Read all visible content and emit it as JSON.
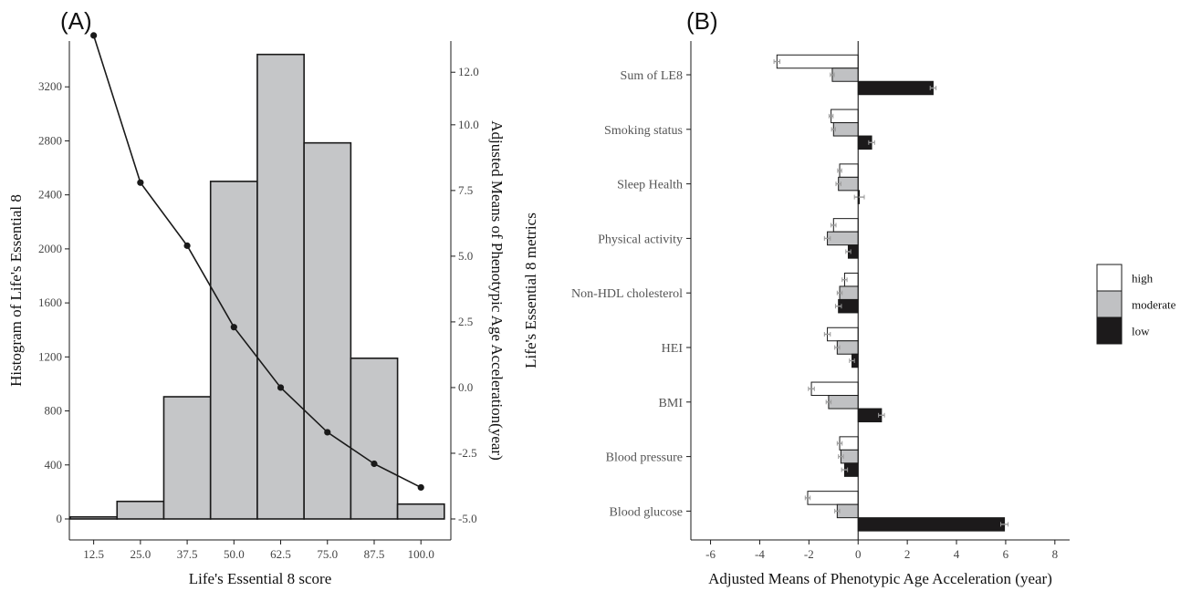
{
  "chart_data": [
    {
      "id": "A",
      "type": "bar",
      "panel_label": "(A)",
      "title": "",
      "xlabel": "Life's Essential 8 score",
      "ylabel": "Histogram of Life's Essential 8",
      "y2label": "Adjusted Means of Phenotypic Age Acceleration(year)",
      "xticks": [
        "12.5",
        "25.0",
        "37.5",
        "50.0",
        "62.5",
        "75.0",
        "87.5",
        "100.0"
      ],
      "xtick_values": [
        12.5,
        25,
        37.5,
        50,
        62.5,
        75,
        87.5,
        100
      ],
      "xlim": [
        6,
        108
      ],
      "ylim": [
        0,
        3600
      ],
      "yticks": [
        "0",
        "400",
        "800",
        "1200",
        "1600",
        "2000",
        "2400",
        "2800",
        "3200"
      ],
      "ytick_values": [
        0,
        400,
        800,
        1200,
        1600,
        2000,
        2400,
        2800,
        3200
      ],
      "y2lim": [
        -5,
        13.5
      ],
      "y2ticks": [
        "-5.0",
        "-2.5",
        "0.0",
        "2.5",
        "5.0",
        "7.5",
        "10.0",
        "12.0"
      ],
      "y2tick_values": [
        -5,
        -2.5,
        0,
        2.5,
        5,
        7.5,
        10,
        12
      ],
      "bars": [
        {
          "x0": 6.25,
          "x1": 18.75,
          "value": 15
        },
        {
          "x0": 18.75,
          "x1": 31.25,
          "value": 130
        },
        {
          "x0": 31.25,
          "x1": 43.75,
          "value": 905
        },
        {
          "x0": 43.75,
          "x1": 56.25,
          "value": 2500
        },
        {
          "x0": 56.25,
          "x1": 68.75,
          "value": 3440
        },
        {
          "x0": 68.75,
          "x1": 81.25,
          "value": 2785
        },
        {
          "x0": 81.25,
          "x1": 93.75,
          "value": 1190
        },
        {
          "x0": 93.75,
          "x1": 106.25,
          "value": 110
        }
      ],
      "line": {
        "x": [
          12.5,
          25,
          37.5,
          50,
          62.5,
          75,
          87.5,
          100
        ],
        "y": [
          13.4,
          7.8,
          5.4,
          2.3,
          0.0,
          -1.7,
          -2.9,
          -3.8
        ]
      },
      "colors": {
        "bar_fill": "#c5c6c8",
        "bar_stroke": "#1a1a1a",
        "line": "#1a1a1a"
      }
    },
    {
      "id": "B",
      "type": "bar",
      "orientation": "horizontal",
      "panel_label": "(B)",
      "title": "",
      "xlabel": "Adjusted Means of Phenotypic Age Acceleration (year)",
      "ylabel": "Life's Essential 8 metrics",
      "xlim": [
        -6.8,
        8.6
      ],
      "xticks": [
        "-6",
        "-4",
        "-2",
        "0",
        "2",
        "4",
        "6",
        "8"
      ],
      "xtick_values": [
        -6,
        -4,
        -2,
        0,
        2,
        4,
        6,
        8
      ],
      "categories": [
        "Sum of LE8",
        "Smoking status",
        "Sleep Health",
        "Physical activity",
        "Non-HDL cholesterol",
        "HEI",
        "BMI",
        "Blood pressure",
        "Blood glucose"
      ],
      "series": [
        {
          "name": "high",
          "values": [
            -3.3,
            -1.1,
            -0.75,
            -1.0,
            -0.55,
            -1.25,
            -1.9,
            -0.75,
            -2.05
          ],
          "errors": [
            0.12,
            0.08,
            0.08,
            0.1,
            0.1,
            0.12,
            0.12,
            0.1,
            0.1
          ],
          "color": "#ffffff"
        },
        {
          "name": "moderate",
          "values": [
            -1.05,
            -1.0,
            -0.8,
            -1.25,
            -0.75,
            -0.85,
            -1.2,
            -0.7,
            -0.85
          ],
          "errors": [
            0.08,
            0.08,
            0.1,
            0.12,
            0.1,
            0.1,
            0.1,
            0.1,
            0.1
          ],
          "color": "#c0c1c3"
        },
        {
          "name": "low",
          "values": [
            3.05,
            0.55,
            0.05,
            -0.4,
            -0.8,
            -0.25,
            0.95,
            -0.55,
            5.95
          ],
          "errors": [
            0.12,
            0.12,
            0.2,
            0.1,
            0.12,
            0.1,
            0.12,
            0.12,
            0.15
          ],
          "color": "#1c1a1b"
        }
      ],
      "legend": {
        "position": "right",
        "entries": [
          "high",
          "moderate",
          "low"
        ]
      }
    }
  ]
}
